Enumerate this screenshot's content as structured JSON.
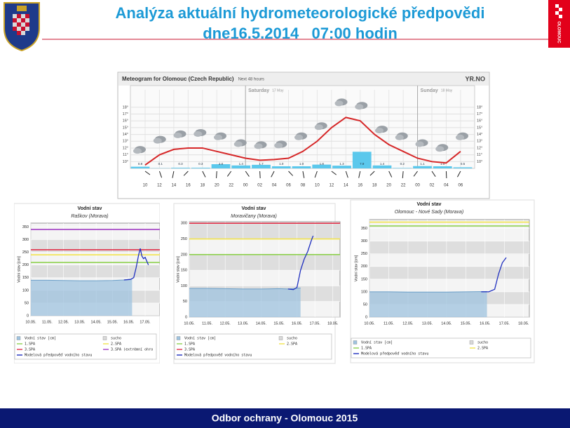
{
  "header": {
    "title": "Analýza aktuální hydrometeorologické předpovědi",
    "subtitle": "dne16.5.2014   07:00 hodin",
    "logo": "OLOMOUC"
  },
  "footer": "Odbor ochrany - Olomouc 2015",
  "chart_data": [
    {
      "type": "meteogram",
      "title": "Meteogram for Olomouc (Czech Republic)",
      "subtitle": "Next 48 hours",
      "brand": "YR.NO",
      "days": [
        {
          "label": "Saturday",
          "date": "17 May",
          "at": 7
        },
        {
          "label": "Sunday",
          "date": "18 May",
          "at": 19
        }
      ],
      "categories": [
        "10",
        "12",
        "14",
        "16",
        "18",
        "20",
        "22",
        "00",
        "02",
        "04",
        "06",
        "08",
        "10",
        "12",
        "14",
        "16",
        "18",
        "20",
        "22",
        "00",
        "02",
        "04",
        "06"
      ],
      "temperature": {
        "color": "#d62728",
        "values": [
          9.5,
          11,
          11.8,
          12,
          12,
          11.5,
          11,
          10.5,
          10.2,
          10.3,
          10.5,
          11.5,
          13,
          15,
          16.5,
          16,
          14,
          12.5,
          11.5,
          10.5,
          10,
          9.8,
          11.5
        ]
      },
      "precipitation": {
        "color": "#5bc8ec",
        "values": [
          0.8,
          0.1,
          0.3,
          0.3,
          2.0,
          1.4,
          1.7,
          1.0,
          1.0,
          1.8,
          1.3,
          7.9,
          1.4,
          0.2,
          1.1,
          1.0,
          0.5
        ],
        "value_labels": [
          "0.8",
          "0.1",
          "0.3",
          "0.3",
          "2.0",
          "1.4",
          "1.7",
          "1.0",
          "1.0",
          "1.8",
          "1.3",
          "7.9",
          "1.4",
          "0.2",
          "1.1",
          "1.0",
          "0.5"
        ]
      },
      "ylim": [
        9,
        18.5
      ],
      "yticks": [
        {
          "value": 10,
          "label": "10°"
        },
        {
          "value": 11,
          "label": "11°"
        },
        {
          "value": 12,
          "label": "12°"
        },
        {
          "value": 13,
          "label": "13°"
        },
        {
          "value": 14,
          "label": "14°"
        },
        {
          "value": 15,
          "label": "15°"
        },
        {
          "value": 16,
          "label": "16°"
        },
        {
          "value": 17,
          "label": "17°"
        },
        {
          "value": 18,
          "label": "18°"
        }
      ],
      "grid": true
    },
    {
      "type": "water-level",
      "title": "Vodní stav",
      "subtitle": "Raškov (Morava)",
      "y_label": "Vodní stav [cm]",
      "xlim": [
        10,
        17.9
      ],
      "xticks": [
        {
          "value": 10,
          "label": "10.05."
        },
        {
          "value": 11,
          "label": "11.05."
        },
        {
          "value": 12,
          "label": "12.05."
        },
        {
          "value": 13,
          "label": "13.05."
        },
        {
          "value": 14,
          "label": "14.05."
        },
        {
          "value": 15,
          "label": "15.05."
        },
        {
          "value": 16,
          "label": "16.05."
        },
        {
          "value": 17,
          "label": "17.05."
        }
      ],
      "ylim": [
        0,
        365
      ],
      "yticks": [
        0,
        50,
        100,
        150,
        200,
        250,
        300,
        350
      ],
      "observed": {
        "name": "Vodní stav [cm]",
        "color": "#9fc3df",
        "x": [
          10,
          11,
          12,
          13,
          14,
          15,
          15.7,
          16.2
        ],
        "values": [
          140,
          140,
          139,
          138,
          138,
          139,
          141,
          145
        ]
      },
      "dry": {
        "name": "sucho",
        "color": "#d9d9d9"
      },
      "thresholds": [
        {
          "name": "1.SPA",
          "value": 210,
          "color": "#8fd14f"
        },
        {
          "name": "2.SPA",
          "value": 240,
          "color": "#f2e34c"
        },
        {
          "name": "3.SPA",
          "value": 260,
          "color": "#e0314a"
        },
        {
          "name": "3.SPA (extrémní ohro",
          "value": 340,
          "color": "#a23fc4"
        }
      ],
      "forecast": {
        "name": "Modelová předpověď vodního stavu",
        "color": "#1f2fbf",
        "x": [
          15.7,
          16.1,
          16.3,
          16.45,
          16.6,
          16.7,
          16.8,
          16.9,
          17.0,
          17.2
        ],
        "values": [
          141,
          143,
          150,
          190,
          240,
          265,
          235,
          225,
          230,
          200
        ]
      }
    },
    {
      "type": "water-level",
      "title": "Vodní stav",
      "subtitle": "Moravičany (Morava)",
      "y_label": "Vodní stav [cm]",
      "xlim": [
        10,
        18.4
      ],
      "xticks": [
        {
          "value": 10,
          "label": "10.05."
        },
        {
          "value": 11,
          "label": "11.05."
        },
        {
          "value": 12,
          "label": "12.05."
        },
        {
          "value": 13,
          "label": "13.05."
        },
        {
          "value": 14,
          "label": "14.05."
        },
        {
          "value": 15,
          "label": "15.05."
        },
        {
          "value": 16,
          "label": "16.05."
        },
        {
          "value": 17,
          "label": "17.05."
        },
        {
          "value": 18,
          "label": "18.05."
        }
      ],
      "ylim": [
        0,
        305
      ],
      "yticks": [
        0,
        50,
        100,
        150,
        200,
        250,
        300
      ],
      "observed": {
        "name": "Vodní stav [cm]",
        "color": "#9fc3df",
        "x": [
          10,
          11,
          12,
          13,
          14,
          15,
          15.5,
          16.2
        ],
        "values": [
          92,
          92,
          91,
          90,
          90,
          91,
          90,
          93
        ]
      },
      "dry": {
        "name": "sucho",
        "color": "#d9d9d9"
      },
      "thresholds": [
        {
          "name": "1.SPA",
          "value": 200,
          "color": "#8fd14f"
        },
        {
          "name": "2.SPA",
          "value": 250,
          "color": "#f2e34c"
        },
        {
          "name": "3.SPA",
          "value": 300,
          "color": "#e0314a"
        }
      ],
      "forecast": {
        "name": "Modelová předpověď vodního stavu",
        "color": "#1f2fbf",
        "x": [
          15.5,
          15.8,
          16.0,
          16.2,
          16.4,
          16.6,
          16.8,
          16.9
        ],
        "values": [
          90,
          88,
          95,
          150,
          185,
          210,
          245,
          260
        ]
      }
    },
    {
      "type": "water-level",
      "title": "Vodní stav",
      "subtitle": "Olomouc - Nové Sady (Morava)",
      "y_label": "Vodní stav [cm]",
      "xlim": [
        10,
        18.3
      ],
      "xticks": [
        {
          "value": 10,
          "label": "10.05."
        },
        {
          "value": 11,
          "label": "11.05."
        },
        {
          "value": 12,
          "label": "12.05."
        },
        {
          "value": 13,
          "label": "13.05."
        },
        {
          "value": 14,
          "label": "14.05."
        },
        {
          "value": 15,
          "label": "15.05."
        },
        {
          "value": 16,
          "label": "16.05."
        },
        {
          "value": 17,
          "label": "17.05."
        },
        {
          "value": 18,
          "label": "18.05."
        }
      ],
      "ylim": [
        0,
        385
      ],
      "yticks": [
        0,
        50,
        100,
        150,
        200,
        250,
        300,
        350
      ],
      "observed": {
        "name": "Vodní stav [cm]",
        "color": "#9fc3df",
        "x": [
          10,
          11,
          12,
          13,
          14,
          15,
          16.1
        ],
        "values": [
          100,
          100,
          99,
          99,
          99,
          100,
          101
        ]
      },
      "dry": {
        "name": "sucho",
        "color": "#d9d9d9"
      },
      "thresholds": [
        {
          "name": "1.SPA",
          "value": 360,
          "color": "#8fd14f"
        },
        {
          "name": "2.SPA",
          "value": 375,
          "color": "#f2e34c"
        }
      ],
      "forecast": {
        "name": "Modelová předpověď vodního stavu",
        "color": "#1f2fbf",
        "x": [
          15.8,
          16.2,
          16.5,
          16.7,
          16.9,
          17.1
        ],
        "values": [
          100,
          100,
          110,
          170,
          215,
          235
        ]
      }
    }
  ]
}
